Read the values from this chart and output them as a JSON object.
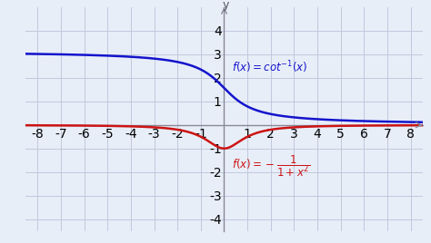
{
  "xlim": [
    -8.5,
    8.5
  ],
  "ylim": [
    -4.5,
    5.0
  ],
  "xticks": [
    -8,
    -7,
    -6,
    -5,
    -4,
    -3,
    -2,
    -1,
    1,
    2,
    3,
    4,
    5,
    6,
    7,
    8
  ],
  "yticks": [
    -4,
    -3,
    -2,
    -1,
    1,
    2,
    3,
    4
  ],
  "blue_color": "#1414cc",
  "red_color": "#cc1414",
  "background_color": "#e8eef8",
  "grid_color": "#c0c8dc",
  "spine_color": "#888899",
  "tick_color": "#555566",
  "tick_fontsize": 7.5,
  "annotation_fontsize": 8.5
}
